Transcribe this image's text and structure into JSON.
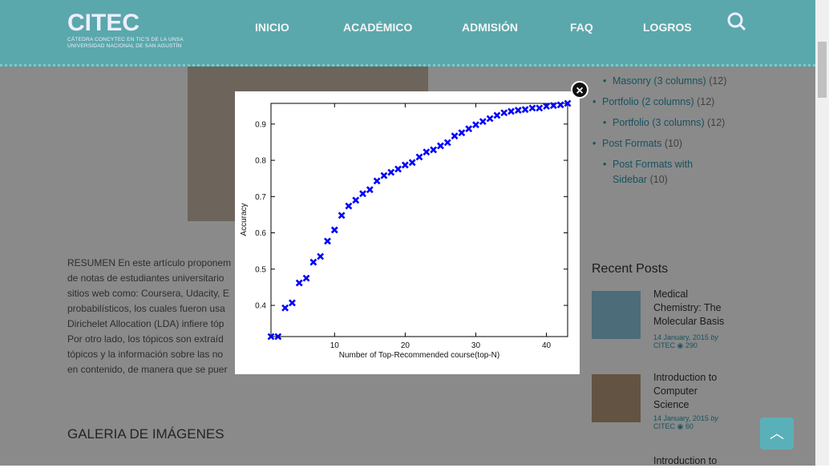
{
  "header": {
    "logo": "CITEC",
    "logo_line1": "CÁTEDRA CONCYTEC EN TIC'S DE LA UNSA",
    "logo_line2": "UNIVERSIDAD NACIONAL DE SAN AGUSTÍN",
    "nav": [
      "INICIO",
      "ACADÉMICO",
      "ADMISIÓN",
      "FAQ",
      "LOGROS"
    ]
  },
  "article": {
    "lines": [
      "RESUMEN En este artículo proponem",
      "de notas de estudiantes universitario",
      "sitios web como: Coursera, Udacity, E",
      "probabilísticos, los cuales fueron usa",
      "Dirichelet Allocation (LDA) infiere tóp",
      "Por otro lado, los tópicos son extraíd",
      "tópicos y la información sobre las no",
      "en contenido, de manera que se puer"
    ],
    "gallery_title": "GALERIA DE IMÁGENES"
  },
  "sidebar": {
    "categories": [
      {
        "name": "Masonry (3 columns)",
        "count": "(12)",
        "sub": true
      },
      {
        "name": "Portfolio (2 columns)",
        "count": "(12)",
        "sub": false
      },
      {
        "name": "Portfolio (3 columns)",
        "count": "(12)",
        "sub": true
      },
      {
        "name": "Post Formats",
        "count": "(10)",
        "sub": false
      },
      {
        "name": "Post Formats with Sidebar",
        "count": "(10)",
        "sub": true
      }
    ],
    "recent_title": "Recent Posts",
    "posts": [
      {
        "title": "Medical Chemistry: The Molecular Basis",
        "date": "14 January, 2015",
        "by": "by",
        "author": "CITEC",
        "views": "290"
      },
      {
        "title": "Introduction to Computer Science",
        "date": "14 January, 2015",
        "by": "by",
        "author": "CITEC",
        "views": "60"
      },
      {
        "title": "Introduction to"
      }
    ]
  },
  "chart_data": {
    "type": "scatter",
    "xlabel": "Number of Top-Recommended course(top-N)",
    "ylabel": "Accuracy",
    "marker": "x",
    "color": "#0000ff",
    "grid": false,
    "x": [
      1,
      2,
      3,
      4,
      5,
      6,
      7,
      8,
      9,
      10,
      11,
      12,
      13,
      14,
      15,
      16,
      17,
      18,
      19,
      20,
      21,
      22,
      23,
      24,
      25,
      26,
      27,
      28,
      29,
      30,
      31,
      32,
      33,
      34,
      35,
      36,
      37,
      38,
      39,
      40,
      41,
      42,
      43
    ],
    "values": [
      0.314,
      0.314,
      0.393,
      0.407,
      0.462,
      0.475,
      0.519,
      0.535,
      0.577,
      0.608,
      0.648,
      0.674,
      0.69,
      0.708,
      0.719,
      0.743,
      0.758,
      0.767,
      0.776,
      0.787,
      0.794,
      0.809,
      0.823,
      0.829,
      0.84,
      0.849,
      0.867,
      0.876,
      0.887,
      0.898,
      0.907,
      0.915,
      0.924,
      0.931,
      0.935,
      0.938,
      0.94,
      0.944,
      0.944,
      0.949,
      0.951,
      0.953,
      0.957
    ],
    "xlim": [
      1,
      43
    ],
    "ylim": [
      0.314,
      0.957
    ],
    "xticks": [
      10,
      20,
      30,
      40
    ],
    "yticks": [
      0.4,
      0.5,
      0.6,
      0.7,
      0.8,
      0.9
    ]
  }
}
